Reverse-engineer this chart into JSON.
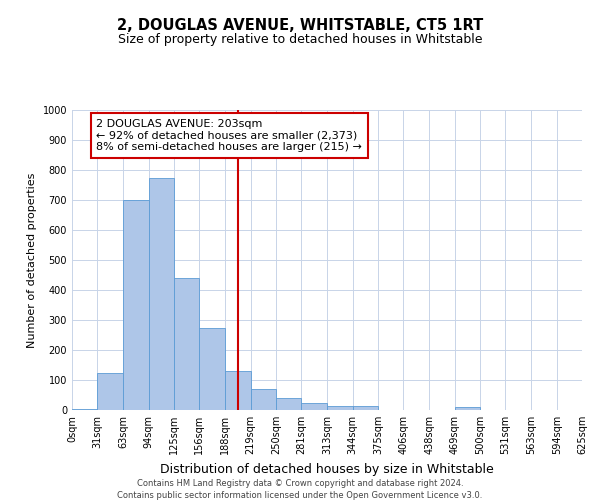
{
  "title": "2, DOUGLAS AVENUE, WHITSTABLE, CT5 1RT",
  "subtitle": "Size of property relative to detached houses in Whitstable",
  "xlabel": "Distribution of detached houses by size in Whitstable",
  "ylabel": "Number of detached properties",
  "bin_edges": [
    0,
    31,
    63,
    94,
    125,
    156,
    188,
    219,
    250,
    281,
    313,
    344,
    375,
    406,
    438,
    469,
    500,
    531,
    563,
    594,
    625
  ],
  "bar_heights": [
    5,
    125,
    700,
    775,
    440,
    275,
    130,
    70,
    40,
    22,
    12,
    12,
    0,
    0,
    0,
    10,
    0,
    0,
    0,
    0
  ],
  "bar_color": "#aec6e8",
  "bar_edge_color": "#5b9bd5",
  "property_size": 203,
  "vline_color": "#cc0000",
  "annotation_text": "2 DOUGLAS AVENUE: 203sqm\n← 92% of detached houses are smaller (2,373)\n8% of semi-detached houses are larger (215) →",
  "annotation_box_color": "#ffffff",
  "annotation_box_edge_color": "#cc0000",
  "ylim": [
    0,
    1000
  ],
  "yticks": [
    0,
    100,
    200,
    300,
    400,
    500,
    600,
    700,
    800,
    900,
    1000
  ],
  "tick_labels": [
    "0sqm",
    "31sqm",
    "63sqm",
    "94sqm",
    "125sqm",
    "156sqm",
    "188sqm",
    "219sqm",
    "250sqm",
    "281sqm",
    "313sqm",
    "344sqm",
    "375sqm",
    "406sqm",
    "438sqm",
    "469sqm",
    "500sqm",
    "531sqm",
    "563sqm",
    "594sqm",
    "625sqm"
  ],
  "footer1": "Contains HM Land Registry data © Crown copyright and database right 2024.",
  "footer2": "Contains public sector information licensed under the Open Government Licence v3.0.",
  "bg_color": "#ffffff",
  "grid_color": "#c8d4e8",
  "title_fontsize": 10.5,
  "subtitle_fontsize": 9,
  "xlabel_fontsize": 9,
  "ylabel_fontsize": 8,
  "tick_fontsize": 7,
  "annotation_fontsize": 8,
  "footer_fontsize": 6
}
